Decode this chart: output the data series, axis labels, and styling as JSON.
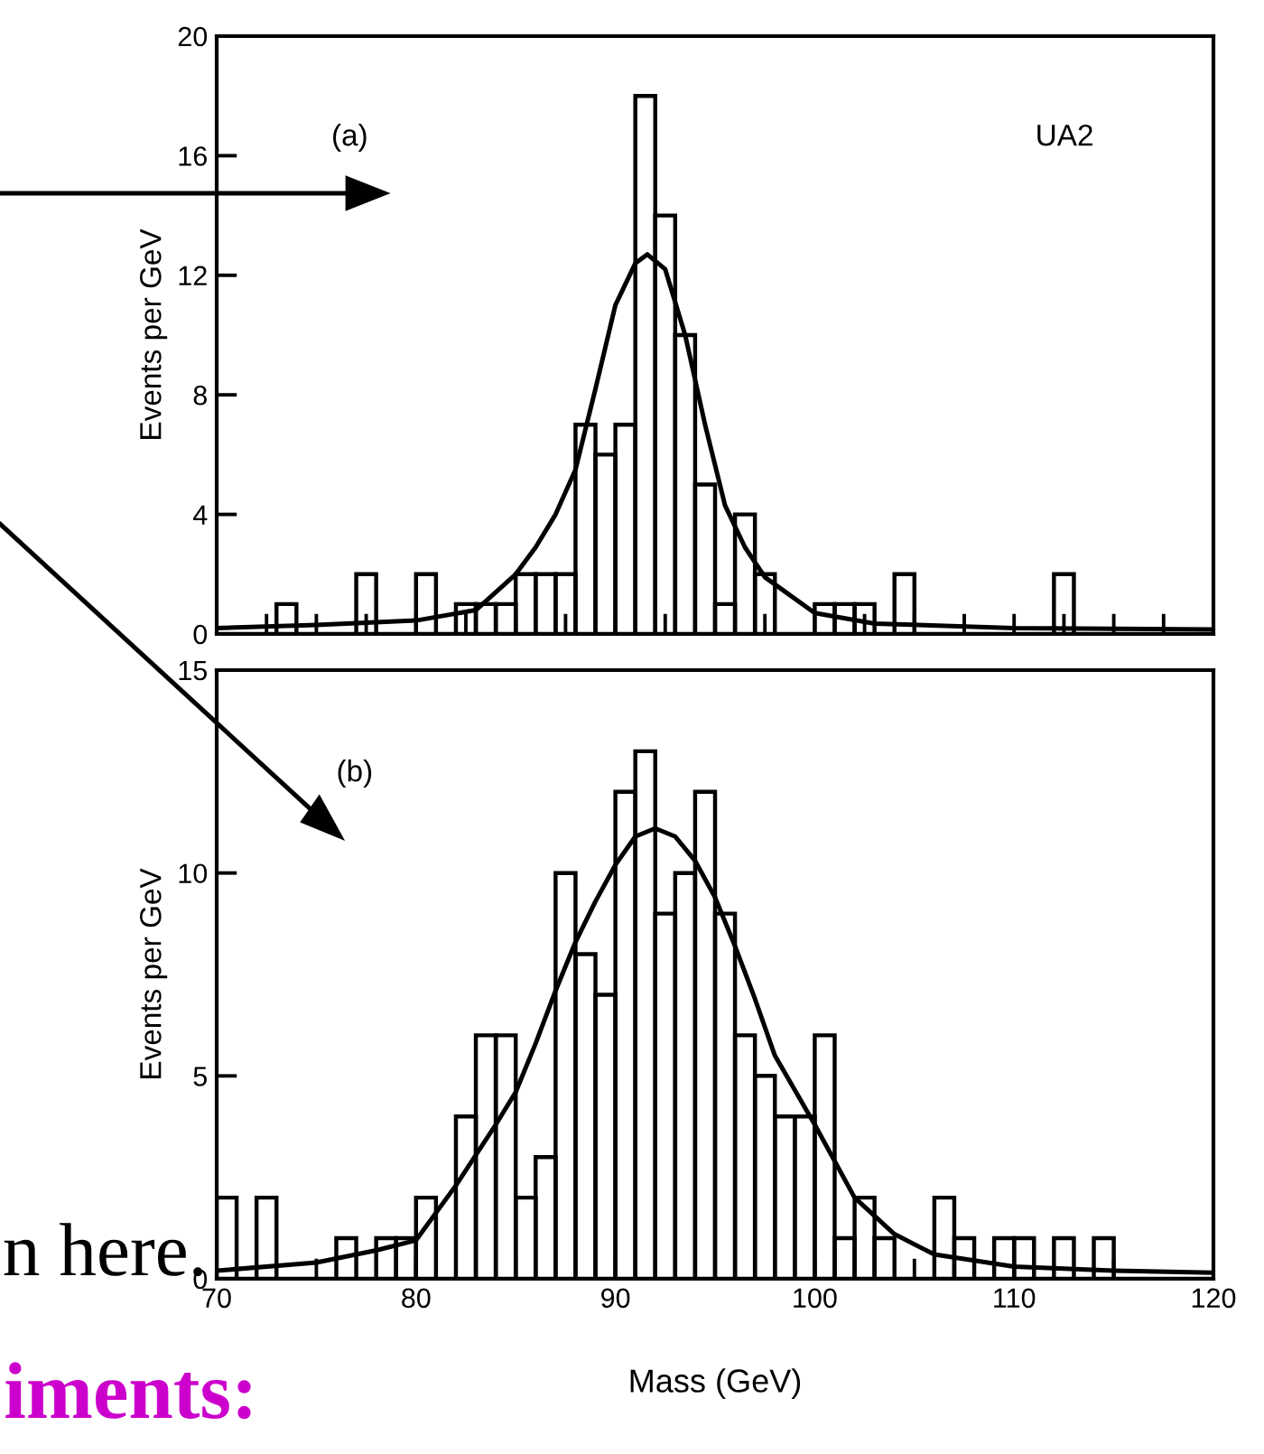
{
  "chart_data": [
    {
      "type": "histogram",
      "ylabel": "Events per GeV",
      "annotations": [
        "(a)",
        "UA2"
      ],
      "xlim": [
        70,
        120
      ],
      "ylim": [
        0,
        20
      ],
      "yticks": [
        0,
        4,
        8,
        12,
        16,
        20
      ],
      "xticks": [
        {
          "value": 70,
          "label": null
        },
        {
          "value": 72.5,
          "label": null
        },
        {
          "value": 75,
          "label": null
        },
        {
          "value": 77.5,
          "label": null
        },
        {
          "value": 80,
          "label": null
        },
        {
          "value": 82.5,
          "label": null
        },
        {
          "value": 85,
          "label": null
        },
        {
          "value": 87.5,
          "label": null
        },
        {
          "value": 90,
          "label": null
        },
        {
          "value": 92.5,
          "label": null
        },
        {
          "value": 95,
          "label": null
        },
        {
          "value": 97.5,
          "label": null
        },
        {
          "value": 100,
          "label": null
        },
        {
          "value": 102.5,
          "label": null
        },
        {
          "value": 105,
          "label": null
        },
        {
          "value": 107.5,
          "label": null
        },
        {
          "value": 110,
          "label": null
        },
        {
          "value": 112.5,
          "label": null
        },
        {
          "value": 115,
          "label": null
        },
        {
          "value": 117.5,
          "label": null
        },
        {
          "value": 120,
          "label": null
        }
      ],
      "tick_labels": "y",
      "grid": false,
      "legend": false,
      "series": [
        {
          "color": "#000000",
          "bins": [
            70,
            71,
            72,
            73,
            74,
            75,
            76,
            77,
            78,
            79,
            80,
            81,
            82,
            83,
            84,
            85,
            86,
            87,
            88,
            89,
            90,
            91,
            92,
            93,
            94,
            95,
            96,
            97,
            98,
            99,
            100,
            101,
            102,
            103,
            104,
            105,
            106,
            107,
            108,
            109,
            110,
            111,
            112,
            113,
            114,
            115,
            116,
            117,
            118,
            119,
            120
          ],
          "values": [
            0,
            0,
            0,
            1,
            0,
            0,
            0,
            2,
            0,
            0,
            2,
            0,
            1,
            1,
            1,
            2,
            2,
            2,
            7,
            6,
            7,
            18,
            14,
            10,
            5,
            1,
            4,
            2,
            0,
            0,
            1,
            1,
            1,
            0,
            2,
            0,
            0,
            0,
            0,
            0,
            0,
            0,
            2,
            0,
            0,
            0,
            0,
            0,
            0,
            0
          ]
        },
        {
          "type": "line",
          "color": "#000000",
          "x": [
            70,
            75,
            80,
            83,
            85,
            86,
            87,
            88,
            89,
            90,
            91,
            91.6,
            92.5,
            93.5,
            94.5,
            95.5,
            96.5,
            97.5,
            100,
            103,
            110,
            120
          ],
          "values": [
            0.2,
            0.3,
            0.45,
            0.8,
            2.0,
            2.9,
            4.0,
            5.5,
            8.2,
            11.0,
            12.4,
            12.7,
            12.2,
            10.0,
            7.0,
            4.3,
            2.9,
            1.9,
            0.7,
            0.35,
            0.2,
            0.15
          ]
        }
      ]
    },
    {
      "type": "histogram",
      "ylabel": "Events per GeV",
      "xlabel": "Mass (GeV)",
      "annotations": [
        "(b)",
        "n here.",
        "iments:"
      ],
      "xlim": [
        70,
        120
      ],
      "ylim": [
        0,
        15
      ],
      "yticks": [
        0,
        5,
        10,
        15
      ],
      "xticks": [
        70,
        {
          "value": 75,
          "label": null
        },
        80,
        {
          "value": 85,
          "label": null
        },
        90,
        {
          "value": 95,
          "label": null
        },
        100,
        {
          "value": 105,
          "label": null
        },
        110,
        {
          "value": 115,
          "label": null
        },
        120
      ],
      "grid": false,
      "legend": false,
      "series": [
        {
          "color": "#000000",
          "bins": [
            70,
            71,
            72,
            73,
            74,
            75,
            76,
            77,
            78,
            79,
            80,
            81,
            82,
            83,
            84,
            85,
            86,
            87,
            88,
            89,
            90,
            91,
            92,
            93,
            94,
            95,
            96,
            97,
            98,
            99,
            100,
            101,
            102,
            103,
            104,
            105,
            106,
            107,
            108,
            109,
            110,
            111,
            112,
            113,
            114,
            115,
            116,
            117,
            118,
            119,
            120
          ],
          "values": [
            2,
            0,
            2,
            0,
            0,
            0,
            1,
            0,
            1,
            1,
            2,
            0,
            4,
            6,
            6,
            2,
            3,
            10,
            8,
            7,
            12,
            13,
            9,
            10,
            12,
            9,
            6,
            5,
            4,
            4,
            6,
            1,
            2,
            1,
            0,
            0,
            2,
            1,
            0,
            1,
            1,
            0,
            1,
            0,
            1,
            0,
            0,
            0,
            0,
            0
          ]
        },
        {
          "type": "line",
          "color": "#000000",
          "x": [
            70,
            75,
            78,
            80,
            82,
            84,
            85,
            86,
            87,
            88,
            89,
            90,
            91,
            92,
            93,
            94,
            95,
            96,
            97,
            98,
            100,
            102,
            104,
            106,
            110,
            115,
            120
          ],
          "values": [
            0.2,
            0.4,
            0.7,
            0.95,
            2.3,
            3.8,
            4.6,
            5.8,
            7.1,
            8.3,
            9.3,
            10.2,
            10.9,
            11.1,
            10.9,
            10.3,
            9.4,
            8.2,
            6.9,
            5.5,
            3.8,
            2.0,
            1.1,
            0.6,
            0.3,
            0.2,
            0.15
          ]
        }
      ]
    }
  ]
}
